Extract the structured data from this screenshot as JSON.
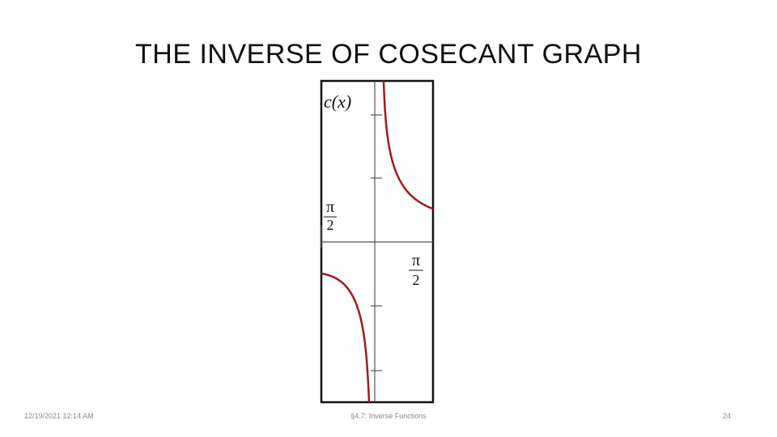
{
  "header": {
    "title": "THE INVERSE OF COSECANT GRAPH"
  },
  "graph": {
    "axis_label": "c(x)",
    "labels": [
      {
        "numerator": "π",
        "denominator": "2"
      },
      {
        "numerator": "π",
        "denominator": "2"
      }
    ]
  },
  "footer": {
    "date": "12/19/2021 12:14 AM",
    "section": "§4.7: Inverse Functions",
    "page": "24"
  }
}
